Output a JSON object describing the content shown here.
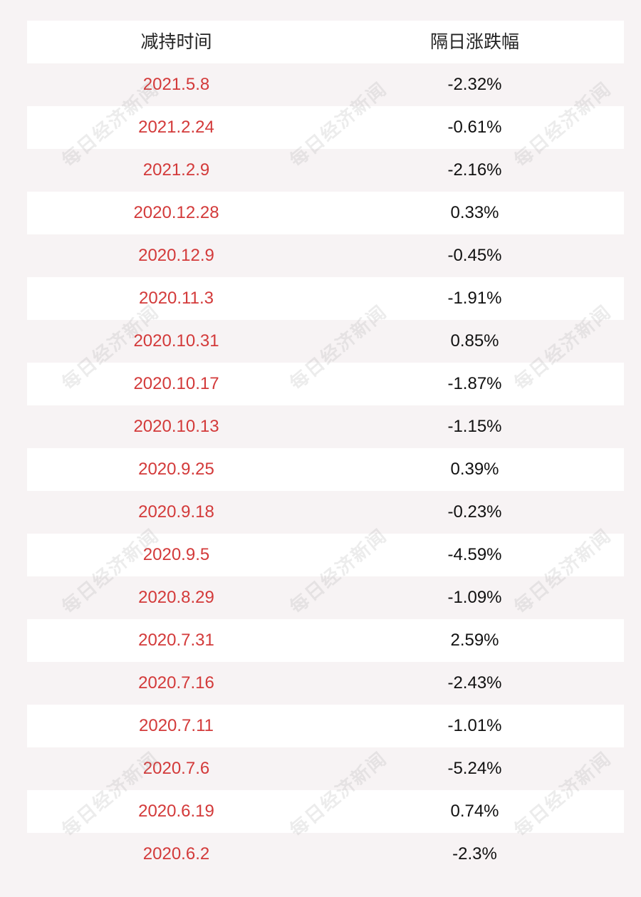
{
  "table": {
    "headers": {
      "date": "减持时间",
      "change": "隔日涨跌幅"
    },
    "rows": [
      {
        "date": "2021.5.8",
        "change": "-2.32%"
      },
      {
        "date": "2021.2.24",
        "change": "-0.61%"
      },
      {
        "date": "2021.2.9",
        "change": "-2.16%"
      },
      {
        "date": "2020.12.28",
        "change": "0.33%"
      },
      {
        "date": "2020.12.9",
        "change": "-0.45%"
      },
      {
        "date": "2020.11.3",
        "change": "-1.91%"
      },
      {
        "date": "2020.10.31",
        "change": "0.85%"
      },
      {
        "date": "2020.10.17",
        "change": "-1.87%"
      },
      {
        "date": "2020.10.13",
        "change": "-1.15%"
      },
      {
        "date": "2020.9.25",
        "change": "0.39%"
      },
      {
        "date": "2020.9.18",
        "change": "-0.23%"
      },
      {
        "date": "2020.9.5",
        "change": "-4.59%"
      },
      {
        "date": "2020.8.29",
        "change": "-1.09%"
      },
      {
        "date": "2020.7.31",
        "change": "2.59%"
      },
      {
        "date": "2020.7.16",
        "change": "-2.43%"
      },
      {
        "date": "2020.7.11",
        "change": "-1.01%"
      },
      {
        "date": "2020.7.6",
        "change": "-5.24%"
      },
      {
        "date": "2020.6.19",
        "change": "0.74%"
      },
      {
        "date": "2020.6.2",
        "change": "-2.3%"
      }
    ]
  },
  "watermark": {
    "text": "每日经济新闻"
  },
  "colors": {
    "date_text": "#d33a3a",
    "value_text": "#111111",
    "row_white": "#ffffff",
    "row_pink": "#f7f3f4"
  }
}
